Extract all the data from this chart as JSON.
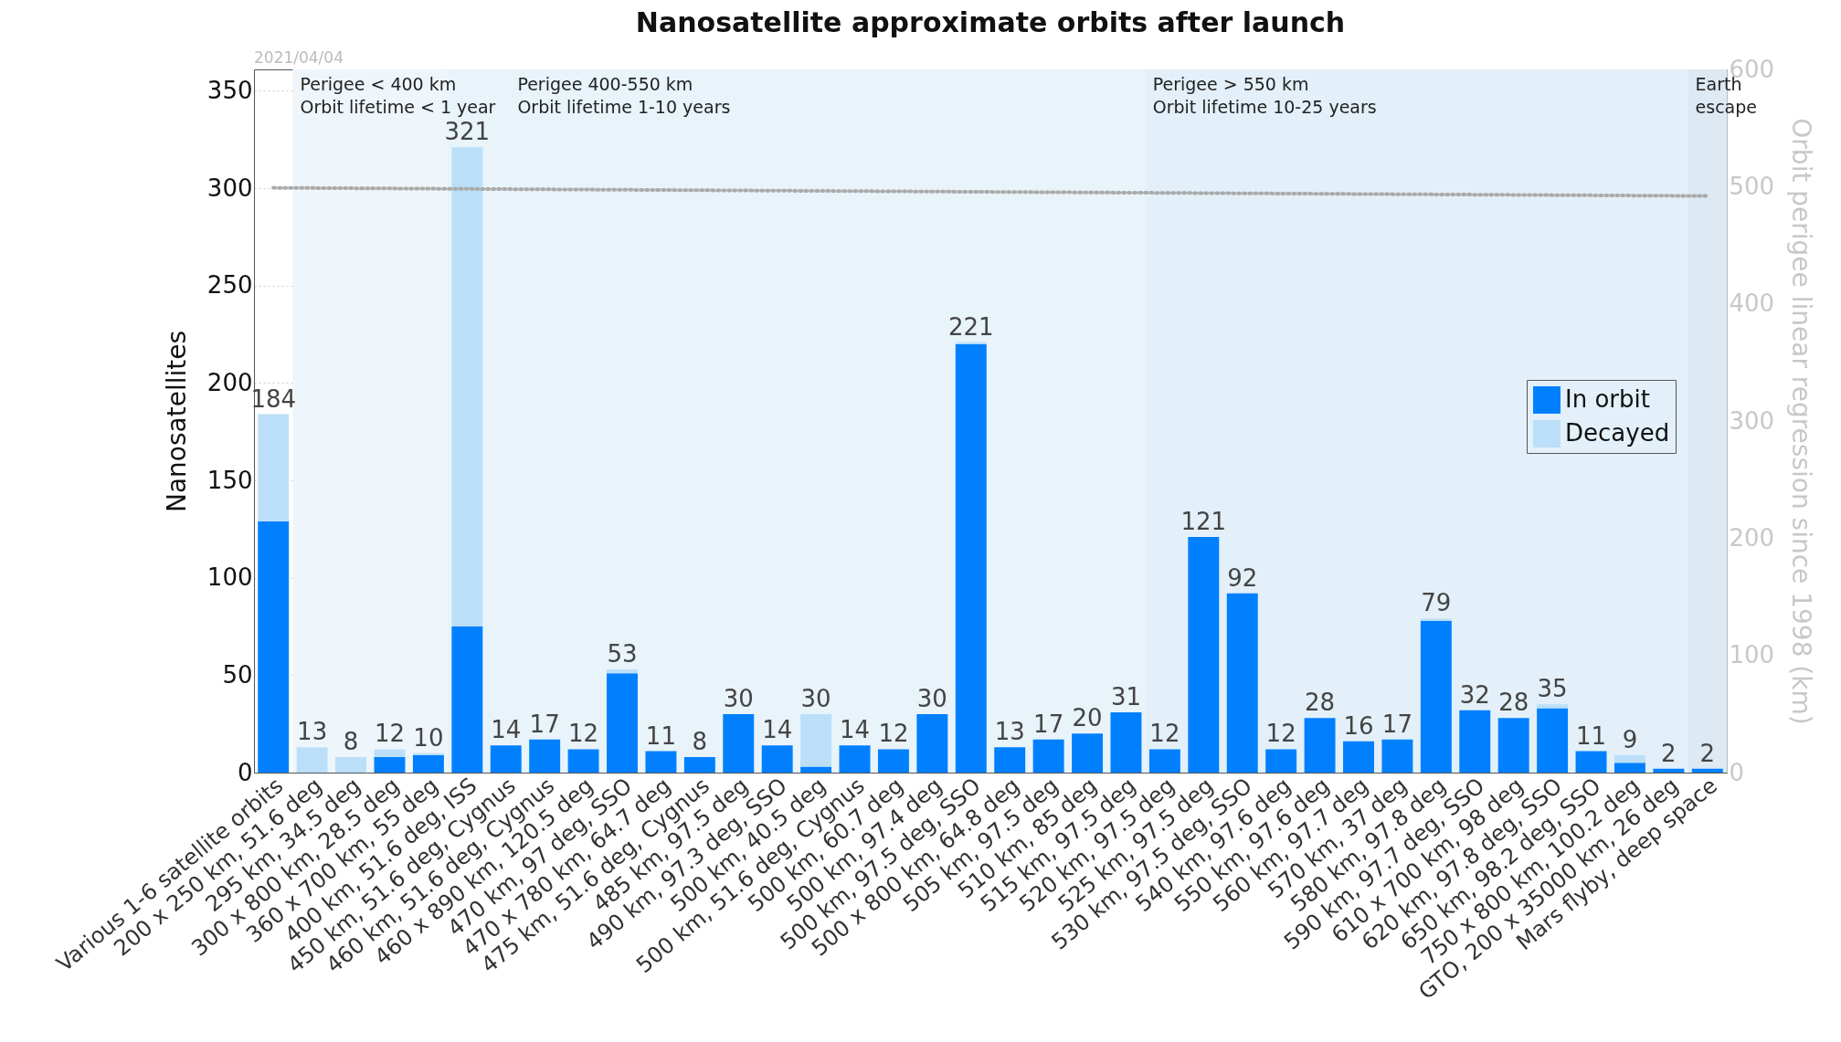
{
  "chart_data": {
    "type": "bar",
    "title": "Nanosatellite approximate orbits after launch",
    "annotations": [
      "2021/04/04"
    ],
    "ylabel": "Nanosatellites",
    "y2label": "Orbit perigee linear regression since 1998 (km)",
    "categories": [
      "Various 1-6 satellite orbits",
      "200 x 250 km, 51.6 deg",
      "295 km, 34.5 deg",
      "300 x 800 km, 28.5 deg",
      "360 x 700 km, 55 deg",
      "400 km, 51.6 deg, ISS",
      "450 km, 51.6 deg, Cygnus",
      "460 km, 51.6 deg, Cygnus",
      "460 x 890 km, 120.5 deg",
      "470 km, 97 deg, SSO",
      "470 x 780 km, 64.7 deg",
      "475 km, 51.6 deg, Cygnus",
      "485 km, 97.5 deg",
      "490 km, 97.3 deg, SSO",
      "500 km, 40.5 deg",
      "500 km, 51.6 deg, Cygnus",
      "500 km, 60.7 deg",
      "500 km, 97.4 deg",
      "500 km, 97.5 deg, SSO",
      "500 x 800 km, 64.8 deg",
      "505 km, 97.5 deg",
      "510 km, 85 deg",
      "515 km, 97.5 deg",
      "520 km, 97.5 deg",
      "525 km, 97.5 deg",
      "530 km, 97.5 deg, SSO",
      "540 km, 97.6 deg",
      "550 km, 97.6 deg",
      "560 km, 97.7 deg",
      "570 km, 37 deg",
      "580 km, 97.8 deg",
      "590 km, 97.7 deg, SSO",
      "610 x 700 km, 98 deg",
      "620 km, 97.8 deg, SSO",
      "650 km, 98.2 deg, SSO",
      "750 x 800 km, 100.2 deg",
      "GTO, 200 x 35000 km, 26 deg",
      "Mars flyby, deep space"
    ],
    "stacked": true,
    "series": [
      {
        "name": "In orbit",
        "color": "#0080ff",
        "values": [
          129,
          0,
          0,
          8,
          9,
          75,
          14,
          17,
          12,
          51,
          11,
          8,
          30,
          14,
          3,
          14,
          12,
          30,
          220,
          13,
          17,
          20,
          31,
          12,
          121,
          92,
          12,
          28,
          16,
          17,
          78,
          32,
          28,
          33,
          11,
          5,
          2,
          2
        ]
      },
      {
        "name": "Decayed",
        "color": "#bbdff8",
        "values": [
          55,
          13,
          8,
          4,
          1,
          246,
          0,
          0,
          0,
          2,
          0,
          0,
          0,
          0,
          27,
          0,
          0,
          0,
          1,
          0,
          0,
          0,
          0,
          0,
          0,
          0,
          0,
          0,
          0,
          0,
          1,
          0,
          0,
          2,
          0,
          4,
          0,
          0
        ]
      },
      {
        "type": "line",
        "axis": "y2",
        "color": "#aaaaaa",
        "line_style": "dotted",
        "x": [
          "Various 1-6 satellite orbits",
          "Mars flyby, deep space"
        ],
        "values": [
          499,
          492
        ]
      }
    ],
    "totals": [
      "184",
      "13",
      "8",
      "12",
      "10",
      "321",
      "14",
      "17",
      "12",
      "53",
      "11",
      "8",
      "30",
      "14",
      "30",
      "14",
      "12",
      "30",
      "221",
      "13",
      "17",
      "20",
      "31",
      "12",
      "121",
      "92",
      "12",
      "28",
      "16",
      "17",
      "79",
      "32",
      "28",
      "35",
      "11",
      "9",
      "2",
      "2"
    ],
    "bands": [
      {
        "axis": "x",
        "from": "200 x 250 km, 51.6 deg",
        "to": "360 x 700 km, 55 deg",
        "label": "Perigee < 400 km\nOrbit lifetime < 1 year",
        "color": "#eef5fb"
      },
      {
        "axis": "x",
        "from": "400 km, 51.6 deg, ISS",
        "to": "515 km, 97.5 deg",
        "label": "Perigee 400-550 km\nOrbit lifetime 1-10 years",
        "color": "#e8f3fa"
      },
      {
        "axis": "x",
        "from": "520 km, 97.5 deg",
        "to": "GTO, 200 x 35000 km, 26 deg",
        "label": "Perigee > 550 km\nOrbit lifetime 10-25 years",
        "color": "#e3f0f9"
      },
      {
        "axis": "x",
        "from": "Mars flyby, deep space",
        "to": "Mars flyby, deep space",
        "label": "Earth\nescape",
        "color": "#dde9f3"
      }
    ],
    "ylim": [
      0,
      361
    ],
    "yticks": [
      0,
      50,
      100,
      150,
      200,
      250,
      300,
      350
    ],
    "y2lim": [
      0,
      600
    ],
    "y2ticks": [
      0,
      100,
      200,
      300,
      400,
      500,
      600
    ],
    "grid": "y",
    "legend": "right"
  }
}
